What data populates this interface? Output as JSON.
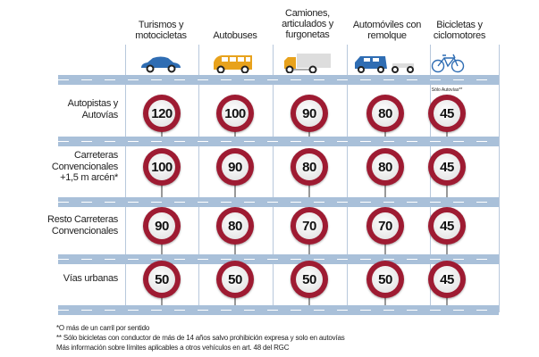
{
  "columns": [
    {
      "label": "Turismos y motocicletas",
      "icon": "car-icon"
    },
    {
      "label": "Autobuses",
      "icon": "bus-icon"
    },
    {
      "label": "Camiones, articulados y furgonetas",
      "icon": "truck-icon"
    },
    {
      "label": "Automóviles con remolque",
      "icon": "car-trailer-icon"
    },
    {
      "label": "Bicicletas y ciclomotores",
      "icon": "bicycle-icon"
    }
  ],
  "rows": [
    {
      "label": "Autopistas y Autovías",
      "limits": [
        "120",
        "100",
        "90",
        "80",
        "45"
      ]
    },
    {
      "label": "Carreteras Convencionales +1,5 m arcén*",
      "limits": [
        "100",
        "90",
        "80",
        "80",
        "45"
      ]
    },
    {
      "label": "Resto Carreteras Convencionales",
      "limits": [
        "90",
        "80",
        "70",
        "70",
        "45"
      ]
    },
    {
      "label": "Vías urbanas",
      "limits": [
        "50",
        "50",
        "50",
        "50",
        "45"
      ]
    }
  ],
  "bike_note": "Sólo Autovías**",
  "footnotes": [
    "*O más de un carril por sentido",
    "** Sólo bicicletas con conductor de más de 14 años salvo prohibición expresa y solo en autovías",
    "Más información sobre límites aplicables a otros vehículos en art. 48 del RGC"
  ],
  "colors": {
    "sign_ring": "#9e1b32",
    "road": "#a9c0d9",
    "vehicle_blue": "#2f6db3",
    "bus_yellow": "#e8a21c"
  }
}
